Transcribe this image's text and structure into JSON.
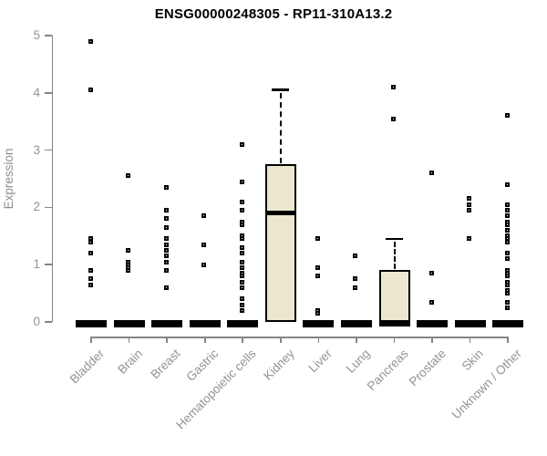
{
  "chart_data": {
    "type": "boxplot",
    "title": "ENSG00000248305 - RP11-310A13.2",
    "xlabel": "",
    "ylabel": "Expression",
    "ylim": [
      0,
      5
    ],
    "yticks": [
      0,
      1,
      2,
      3,
      4,
      5
    ],
    "grid": false,
    "legend": "none",
    "colors": {
      "box_fill": "#ECE7CF",
      "box_border": "#000000",
      "median": "#000000",
      "axis": "#858585",
      "tick_labels": "#939393",
      "title": "#000000",
      "background": "#ffffff"
    },
    "categories": [
      "Bladder",
      "Brain",
      "Breast",
      "Gastric",
      "Hematopoietic cells",
      "Kidney",
      "Liver",
      "Lung",
      "Pancreas",
      "Prostate",
      "Skin",
      "Unknown / Other"
    ],
    "series": [
      {
        "category": "Bladder",
        "q1": 0,
        "median": 0,
        "q3": 0,
        "whisker_low": 0,
        "whisker_high": 0,
        "outliers": [
          4.9,
          4.05,
          1.45,
          1.4,
          1.2,
          0.9,
          0.75,
          0.65
        ]
      },
      {
        "category": "Brain",
        "q1": 0,
        "median": 0,
        "q3": 0,
        "whisker_low": 0,
        "whisker_high": 0,
        "outliers": [
          2.55,
          1.25,
          1.05,
          1.0,
          0.95,
          0.9
        ]
      },
      {
        "category": "Breast",
        "q1": 0,
        "median": 0,
        "q3": 0,
        "whisker_low": 0,
        "whisker_high": 0,
        "outliers": [
          2.35,
          1.95,
          1.8,
          1.65,
          1.45,
          1.35,
          1.25,
          1.15,
          1.05,
          0.9,
          0.6
        ]
      },
      {
        "category": "Gastric",
        "q1": 0,
        "median": 0,
        "q3": 0,
        "whisker_low": 0,
        "whisker_high": 0,
        "outliers": [
          1.85,
          1.35,
          1.0
        ]
      },
      {
        "category": "Hematopoietic cells",
        "q1": 0,
        "median": 0,
        "q3": 0,
        "whisker_low": 0,
        "whisker_high": 0,
        "outliers": [
          3.1,
          2.45,
          2.1,
          1.95,
          1.75,
          1.7,
          1.5,
          1.45,
          1.3,
          1.2,
          1.05,
          0.95,
          0.85,
          0.8,
          0.7,
          0.6,
          0.4,
          0.3,
          0.2
        ]
      },
      {
        "category": "Kidney",
        "q1": 0,
        "median": 1.9,
        "q3": 2.75,
        "whisker_low": 0,
        "whisker_high": 4.05,
        "outliers": []
      },
      {
        "category": "Liver",
        "q1": 0,
        "median": 0,
        "q3": 0,
        "whisker_low": 0,
        "whisker_high": 0,
        "outliers": [
          1.45,
          0.95,
          0.8,
          0.2,
          0.15
        ]
      },
      {
        "category": "Lung",
        "q1": 0,
        "median": 0,
        "q3": 0,
        "whisker_low": 0,
        "whisker_high": 0,
        "outliers": [
          1.15,
          0.75,
          0.6
        ]
      },
      {
        "category": "Pancreas",
        "q1": 0,
        "median": 0,
        "q3": 0.9,
        "whisker_low": 0,
        "whisker_high": 1.45,
        "outliers": [
          4.1,
          3.55
        ]
      },
      {
        "category": "Prostate",
        "q1": 0,
        "median": 0,
        "q3": 0,
        "whisker_low": 0,
        "whisker_high": 0,
        "outliers": [
          2.6,
          0.85,
          0.35
        ]
      },
      {
        "category": "Skin",
        "q1": 0,
        "median": 0,
        "q3": 0,
        "whisker_low": 0,
        "whisker_high": 0,
        "outliers": [
          2.15,
          2.05,
          1.95,
          1.45
        ]
      },
      {
        "category": "Unknown / Other",
        "q1": 0,
        "median": 0,
        "q3": 0,
        "whisker_low": 0,
        "whisker_high": 0,
        "outliers": [
          3.6,
          2.4,
          2.05,
          1.95,
          1.85,
          1.75,
          1.7,
          1.6,
          1.5,
          1.45,
          1.4,
          1.2,
          1.1,
          0.9,
          0.85,
          0.8,
          0.7,
          0.65,
          0.55,
          0.5,
          0.35,
          0.25
        ]
      }
    ]
  }
}
